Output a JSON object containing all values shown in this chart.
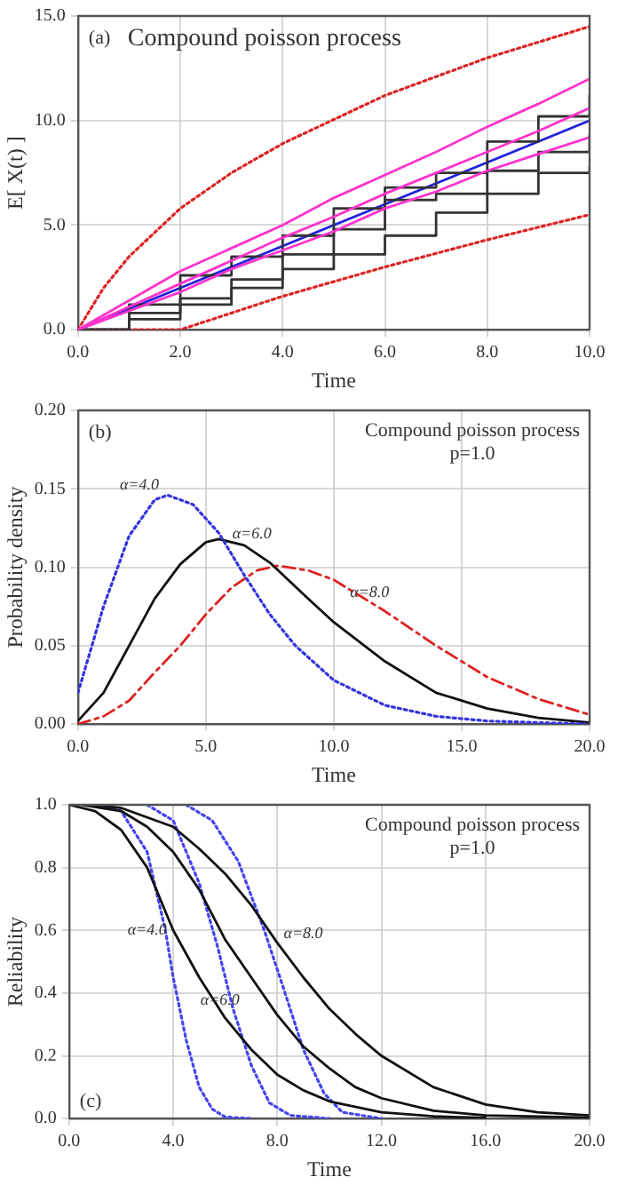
{
  "chart_data": [
    {
      "type": "line",
      "xlabel": "Time",
      "ylabel": "E[ X(t) ]",
      "xlim": [
        0,
        10
      ],
      "ylim": [
        0,
        15
      ],
      "xticks": [
        {
          "value": 0,
          "label": "0.0"
        },
        {
          "value": 2,
          "label": "2.0"
        },
        {
          "value": 4,
          "label": "4.0"
        },
        {
          "value": 6,
          "label": "6.0"
        },
        {
          "value": 8,
          "label": "8.0"
        },
        {
          "value": 10,
          "label": "10.0"
        }
      ],
      "yticks": [
        {
          "value": 0,
          "label": "0.0"
        },
        {
          "value": 5,
          "label": "5.0"
        },
        {
          "value": 10,
          "label": "10.0"
        },
        {
          "value": 15,
          "label": "15.0"
        }
      ],
      "grid": true,
      "annotations": [
        "(a)",
        "Compound poisson process"
      ],
      "series": [
        {
          "type": "line",
          "color": "#ff33cc",
          "x": [
            0,
            1,
            2,
            3,
            4,
            5,
            6,
            7,
            8,
            9,
            10
          ],
          "values": [
            0,
            1.4,
            2.8,
            3.9,
            5.0,
            6.3,
            7.4,
            8.5,
            9.7,
            10.8,
            12.0
          ]
        },
        {
          "type": "line",
          "color": "#ff33cc",
          "x": [
            0,
            1,
            2,
            3,
            4,
            5,
            6,
            7,
            8,
            9,
            10
          ],
          "values": [
            0,
            0.9,
            1.8,
            2.9,
            3.8,
            4.7,
            5.8,
            6.6,
            7.6,
            8.4,
            9.2
          ]
        },
        {
          "type": "line",
          "color": "#ff33cc",
          "x": [
            0,
            1,
            2,
            3,
            4,
            5,
            6,
            7,
            8,
            9,
            10
          ],
          "values": [
            0,
            1.1,
            2.2,
            3.3,
            4.4,
            5.4,
            6.5,
            7.5,
            8.5,
            9.5,
            10.6
          ]
        },
        {
          "type": "step",
          "color": "#333333",
          "x": [
            0,
            1,
            2,
            3,
            4,
            5,
            6,
            7,
            8,
            9,
            10
          ],
          "values": [
            0,
            0.8,
            1.5,
            2.4,
            3.6,
            4.8,
            6.2,
            6.5,
            7.6,
            8.5,
            9.3
          ]
        },
        {
          "type": "step",
          "color": "#333333",
          "x": [
            0,
            1,
            2,
            3,
            4,
            5,
            6,
            7,
            8,
            9,
            10
          ],
          "values": [
            0,
            1.2,
            2.6,
            3.5,
            4.5,
            5.8,
            6.8,
            7.5,
            9.0,
            10.2,
            11.2
          ]
        },
        {
          "type": "step",
          "color": "#333333",
          "x": [
            0,
            1,
            2,
            3,
            4,
            5,
            6,
            7,
            8,
            9,
            10
          ],
          "values": [
            0,
            0.5,
            1.2,
            2.0,
            2.9,
            3.6,
            4.5,
            5.6,
            6.5,
            7.5,
            7.8
          ]
        },
        {
          "type": "line",
          "color": "#2222dd",
          "x": [
            0,
            10
          ],
          "values": [
            0,
            10
          ]
        },
        {
          "type": "line",
          "color": "#dd2222",
          "line_style": "dotted",
          "x": [
            0,
            0.5,
            1,
            2,
            3,
            4,
            6,
            8,
            10
          ],
          "values": [
            0,
            2.0,
            3.5,
            5.8,
            7.5,
            8.9,
            11.2,
            13.0,
            14.5
          ]
        },
        {
          "type": "line",
          "color": "#dd2222",
          "line_style": "dotted",
          "x": [
            0,
            2,
            4,
            6,
            8,
            10
          ],
          "values": [
            0,
            0,
            1.6,
            3.0,
            4.3,
            5.5
          ]
        }
      ]
    },
    {
      "type": "line",
      "xlabel": "Time",
      "ylabel": "Probability density",
      "xlim": [
        0,
        20
      ],
      "ylim": [
        0,
        0.2
      ],
      "xticks": [
        {
          "value": 0,
          "label": "0.0"
        },
        {
          "value": 5,
          "label": "5.0"
        },
        {
          "value": 10,
          "label": "10.0"
        },
        {
          "value": 15,
          "label": "15.0"
        },
        {
          "value": 20,
          "label": "20.0"
        }
      ],
      "yticks": [
        {
          "value": 0,
          "label": "0.00"
        },
        {
          "value": 0.05,
          "label": "0.05"
        },
        {
          "value": 0.1,
          "label": "0.10"
        },
        {
          "value": 0.15,
          "label": "0.15"
        },
        {
          "value": 0.2,
          "label": "0.20"
        }
      ],
      "grid": true,
      "annotations": [
        "(b)",
        "Compound poisson process",
        "p=1.0",
        "α=4.0",
        "α=6.0",
        "α=8.0"
      ],
      "series": [
        {
          "type": "line",
          "color": "#3333dd",
          "line_style": "dotted",
          "x": [
            0,
            1,
            2,
            3,
            3.5,
            4.5,
            5.5,
            6.5,
            7.5,
            8.5,
            10,
            12,
            14,
            16,
            20
          ],
          "values": [
            0.02,
            0.075,
            0.12,
            0.143,
            0.146,
            0.14,
            0.122,
            0.095,
            0.07,
            0.05,
            0.028,
            0.012,
            0.005,
            0.002,
            0
          ]
        },
        {
          "type": "line",
          "color": "#111111",
          "x": [
            0,
            1,
            2,
            3,
            4,
            5,
            5.5,
            6.5,
            7.5,
            9,
            10,
            12,
            14,
            16,
            18,
            20
          ],
          "values": [
            0.002,
            0.02,
            0.05,
            0.08,
            0.102,
            0.116,
            0.118,
            0.114,
            0.103,
            0.08,
            0.065,
            0.04,
            0.02,
            0.01,
            0.004,
            0.001
          ]
        },
        {
          "type": "line",
          "color": "#dd2222",
          "line_style": "dashed",
          "x": [
            0,
            1,
            2,
            3,
            4,
            5,
            6,
            7,
            7.8,
            9,
            10,
            12,
            14,
            16,
            18,
            20
          ],
          "values": [
            0,
            0.005,
            0.015,
            0.033,
            0.05,
            0.07,
            0.087,
            0.098,
            0.101,
            0.098,
            0.092,
            0.072,
            0.05,
            0.03,
            0.016,
            0.006
          ]
        }
      ]
    },
    {
      "type": "line",
      "xlabel": "Time",
      "ylabel": "Reliability",
      "xlim": [
        0,
        20
      ],
      "ylim": [
        0,
        1
      ],
      "xticks": [
        {
          "value": 0,
          "label": "0.0"
        },
        {
          "value": 4,
          "label": "4.0"
        },
        {
          "value": 8,
          "label": "8.0"
        },
        {
          "value": 12,
          "label": "12.0"
        },
        {
          "value": 16,
          "label": "16.0"
        },
        {
          "value": 20,
          "label": "20.0"
        }
      ],
      "yticks": [
        {
          "value": 0,
          "label": "0.0"
        },
        {
          "value": 0.2,
          "label": "0.2"
        },
        {
          "value": 0.4,
          "label": "0.4"
        },
        {
          "value": 0.6,
          "label": "0.6"
        },
        {
          "value": 0.8,
          "label": "0.8"
        },
        {
          "value": 1,
          "label": "1.0"
        }
      ],
      "grid": true,
      "annotations": [
        "Compound poisson process",
        "p=1.0",
        "(c)",
        "α=4.0",
        "α=6.0",
        "α=8.0"
      ],
      "series": [
        {
          "type": "line",
          "color": "#111111",
          "x": [
            0,
            1,
            2,
            3,
            4,
            5,
            6,
            7,
            8,
            9,
            10,
            12,
            14,
            16
          ],
          "values": [
            1,
            0.98,
            0.92,
            0.8,
            0.6,
            0.45,
            0.32,
            0.22,
            0.14,
            0.09,
            0.055,
            0.02,
            0.007,
            0.002
          ]
        },
        {
          "type": "line",
          "color": "#111111",
          "x": [
            0.5,
            2,
            3,
            4,
            5,
            6,
            7,
            8,
            9,
            10,
            11,
            12,
            14,
            16,
            20
          ],
          "values": [
            1,
            0.98,
            0.93,
            0.85,
            0.73,
            0.57,
            0.45,
            0.33,
            0.23,
            0.16,
            0.1,
            0.065,
            0.025,
            0.01,
            0.003
          ]
        },
        {
          "type": "line",
          "color": "#111111",
          "x": [
            1,
            2,
            4,
            5,
            6,
            7,
            8,
            9,
            10,
            11,
            12,
            14,
            16,
            18,
            20
          ],
          "values": [
            1,
            0.99,
            0.93,
            0.86,
            0.78,
            0.68,
            0.56,
            0.45,
            0.35,
            0.27,
            0.2,
            0.1,
            0.045,
            0.02,
            0.01
          ]
        },
        {
          "color": "#4444ee",
          "line_style": "dotted",
          "x": [
            1,
            2,
            3,
            3.7,
            4,
            4.5,
            5,
            5.5,
            6,
            7
          ],
          "values": [
            1,
            0.98,
            0.85,
            0.6,
            0.45,
            0.25,
            0.1,
            0.03,
            0.005,
            0
          ]
        },
        {
          "color": "#4444ee",
          "line_style": "dotted",
          "x": [
            3,
            4,
            5,
            5.7,
            6.3,
            7,
            7.7,
            8.5,
            10
          ],
          "values": [
            1,
            0.95,
            0.75,
            0.55,
            0.35,
            0.17,
            0.05,
            0.01,
            0
          ]
        },
        {
          "color": "#4444ee",
          "line_style": "dotted",
          "x": [
            4.5,
            5.5,
            6.5,
            7.5,
            8.3,
            9,
            9.8,
            10.5,
            12
          ],
          "values": [
            1,
            0.95,
            0.82,
            0.6,
            0.4,
            0.22,
            0.08,
            0.02,
            0
          ]
        }
      ]
    }
  ]
}
